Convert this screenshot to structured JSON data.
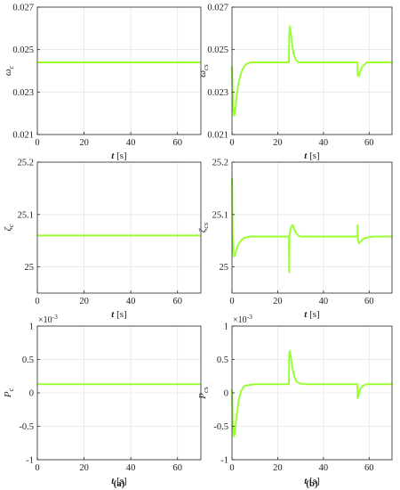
{
  "line_color": "#99ff33",
  "panel_labels": {
    "a": "(a)",
    "b": "(b)"
  },
  "chart_data": [
    {
      "id": "omega_c",
      "type": "line",
      "ylabel": "ω",
      "ysub": "c",
      "xlabel_var": "t",
      "xlabel_unit": "[s]",
      "xlim": [
        0,
        70
      ],
      "ylim": [
        0.021,
        0.027
      ],
      "yticks": [
        "0.021",
        "0.023",
        "0.025",
        "0.027"
      ],
      "xticks": [
        "0",
        "20",
        "40",
        "60"
      ],
      "multiplier": "",
      "series": [
        {
          "x": [
            0,
            70
          ],
          "y": [
            0.0244,
            0.0244
          ]
        }
      ]
    },
    {
      "id": "omega_cs",
      "type": "line",
      "ylabel": "ω",
      "ysub": "cs",
      "xlabel_var": "t",
      "xlabel_unit": "[s]",
      "xlim": [
        0,
        70
      ],
      "ylim": [
        0.021,
        0.027
      ],
      "yticks": [
        "0.021",
        "0.023",
        "0.025",
        "0.027"
      ],
      "xticks": [
        "0",
        "20",
        "40",
        "60"
      ],
      "multiplier": "",
      "series": [
        {
          "x": [
            0,
            0.4,
            0.8,
            1,
            1.5,
            2,
            3,
            4,
            5,
            6,
            8,
            10,
            15,
            20,
            24.9,
            25,
            25.3,
            25.6,
            26,
            26.5,
            27,
            28,
            29,
            30,
            32,
            35,
            40,
            45,
            50,
            54.9,
            55,
            55.5,
            56,
            57,
            58,
            59,
            60,
            62,
            70
          ],
          "y": [
            0.0242,
            0.0224,
            0.0219,
            0.0219,
            0.0222,
            0.0228,
            0.0235,
            0.0239,
            0.02415,
            0.0243,
            0.0244,
            0.0244,
            0.0244,
            0.0244,
            0.0244,
            0.0256,
            0.0261,
            0.0259,
            0.0255,
            0.0251,
            0.0248,
            0.0245,
            0.0244,
            0.0244,
            0.0244,
            0.0244,
            0.0244,
            0.0244,
            0.0244,
            0.0244,
            0.0238,
            0.02375,
            0.02395,
            0.0242,
            0.0243,
            0.0244,
            0.0244,
            0.0244,
            0.0244
          ]
        }
      ]
    },
    {
      "id": "zeta_c",
      "type": "line",
      "ylabel": "ζ",
      "ysub": "c",
      "xlabel_var": "t",
      "xlabel_unit": "[s]",
      "xlim": [
        0,
        70
      ],
      "ylim": [
        24.95,
        25.2
      ],
      "yticks": [
        "25",
        "25.1",
        "25.2"
      ],
      "ytickvals": [
        25,
        25.1,
        25.2
      ],
      "xticks": [
        "0",
        "20",
        "40",
        "60"
      ],
      "multiplier": "",
      "series": [
        {
          "x": [
            0,
            70
          ],
          "y": [
            25.06,
            25.06
          ]
        }
      ]
    },
    {
      "id": "zeta_cs",
      "type": "line",
      "ylabel": "ζ",
      "ysub": "cs",
      "xlabel_var": "t",
      "xlabel_unit": "[s]",
      "xlim": [
        0,
        70
      ],
      "ylim": [
        24.95,
        25.2
      ],
      "yticks": [
        "25",
        "25.1",
        "25.2"
      ],
      "ytickvals": [
        25,
        25.1,
        25.2
      ],
      "xticks": [
        "0",
        "20",
        "40",
        "60"
      ],
      "multiplier": "",
      "series": [
        {
          "x": [
            0,
            0.3,
            0.6,
            1,
            1.5,
            2,
            3,
            4,
            5,
            6,
            8,
            10,
            15,
            20,
            24.9,
            25,
            25.05,
            25.1,
            25.5,
            26,
            26.5,
            27,
            28,
            29,
            30,
            32,
            35,
            40,
            45,
            50,
            54.9,
            55,
            55.05,
            55.1,
            55.6,
            56,
            57,
            58,
            59,
            60,
            62,
            70
          ],
          "y": [
            25.17,
            25.06,
            25.025,
            25.02,
            25.025,
            25.035,
            25.045,
            25.05,
            25.055,
            25.056,
            25.058,
            25.058,
            25.058,
            25.058,
            25.058,
            25.0,
            24.99,
            25.058,
            25.07,
            25.078,
            25.08,
            25.075,
            25.065,
            25.06,
            25.058,
            25.058,
            25.058,
            25.058,
            25.058,
            25.058,
            25.058,
            25.08,
            25.068,
            25.05,
            25.045,
            25.047,
            25.052,
            25.055,
            25.056,
            25.057,
            25.058,
            25.058
          ]
        }
      ]
    },
    {
      "id": "p_c",
      "type": "line",
      "ylabel": "P",
      "ysub": "c",
      "xlabel_var": "t",
      "xlabel_unit": "[s]",
      "xlim": [
        0,
        70
      ],
      "ylim": [
        -1,
        1
      ],
      "yticks": [
        "-1",
        "-0.5",
        "0",
        "0.5",
        "1"
      ],
      "ytickvals": [
        -1,
        -0.5,
        0,
        0.5,
        1
      ],
      "xticks": [
        "0",
        "20",
        "40",
        "60"
      ],
      "multiplier": "×10",
      "multiplier_exp": "-3",
      "series": [
        {
          "x": [
            0,
            70
          ],
          "y": [
            0.13,
            0.13
          ]
        }
      ]
    },
    {
      "id": "p_cs",
      "type": "line",
      "ylabel": "P",
      "ysub": "cs",
      "xlabel_var": "t",
      "xlabel_unit": "[s]",
      "xlim": [
        0,
        70
      ],
      "ylim": [
        -1,
        1
      ],
      "yticks": [
        "-1",
        "-0.5",
        "0",
        "0.5",
        "1"
      ],
      "ytickvals": [
        -1,
        -0.5,
        0,
        0.5,
        1
      ],
      "xticks": [
        "0",
        "20",
        "40",
        "60"
      ],
      "multiplier": "×10",
      "multiplier_exp": "-3",
      "series": [
        {
          "x": [
            0,
            0.3,
            0.8,
            1.2,
            2,
            3,
            4,
            5,
            6,
            8,
            10,
            15,
            20,
            24.9,
            25,
            25.3,
            25.7,
            26.2,
            27,
            28,
            29,
            30,
            32,
            35,
            40,
            45,
            50,
            54.9,
            55,
            55.5,
            56,
            57,
            58,
            59,
            60,
            62,
            70
          ],
          "y": [
            0.05,
            -0.45,
            -0.65,
            -0.6,
            -0.35,
            -0.1,
            0.03,
            0.09,
            0.11,
            0.12,
            0.13,
            0.13,
            0.13,
            0.13,
            0.55,
            0.63,
            0.55,
            0.42,
            0.28,
            0.18,
            0.15,
            0.14,
            0.13,
            0.13,
            0.13,
            0.13,
            0.13,
            0.13,
            -0.08,
            -0.02,
            0.05,
            0.1,
            0.12,
            0.13,
            0.13,
            0.13,
            0.13
          ]
        }
      ]
    }
  ]
}
